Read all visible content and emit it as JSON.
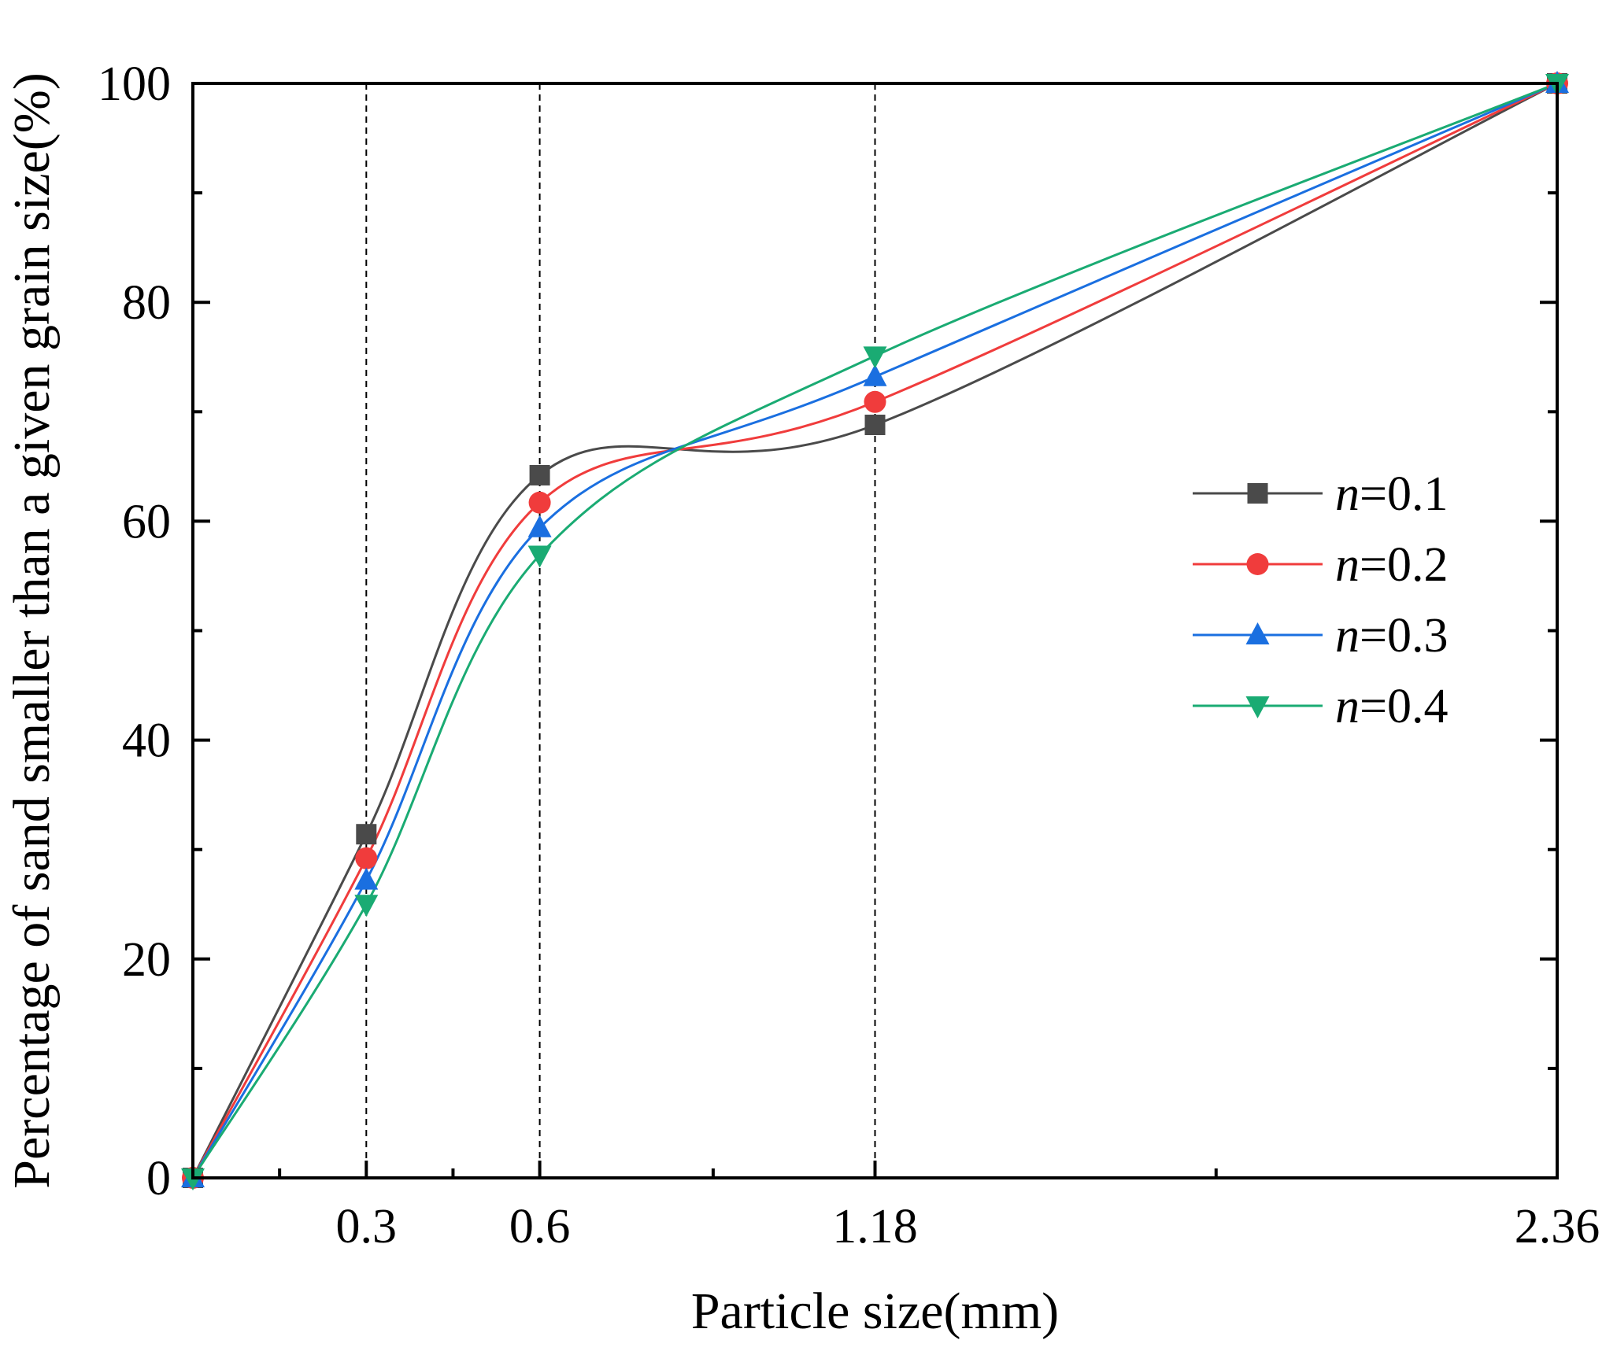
{
  "chart_data": {
    "type": "line",
    "title": "",
    "xlabel": "Particle size(mm)",
    "ylabel": "Percentage of sand smaller than a given grain size(%)",
    "xlim": [
      0,
      2.36
    ],
    "ylim": [
      0,
      100
    ],
    "x_ticks": [
      {
        "value": 0.3,
        "label": "0.3"
      },
      {
        "value": 0.6,
        "label": "0.6"
      },
      {
        "value": 1.18,
        "label": "1.18"
      },
      {
        "value": 2.36,
        "label": "2.36"
      }
    ],
    "y_ticks": [
      {
        "value": 0,
        "label": "0"
      },
      {
        "value": 20,
        "label": "20"
      },
      {
        "value": 40,
        "label": "40"
      },
      {
        "value": 60,
        "label": "60"
      },
      {
        "value": 80,
        "label": "80"
      },
      {
        "value": 100,
        "label": "100"
      }
    ],
    "reference_lines_x": [
      0.3,
      0.6,
      1.18
    ],
    "legend_position": "center-right",
    "x": [
      0,
      0.3,
      0.6,
      1.18,
      2.36
    ],
    "series": [
      {
        "name": "n=0.1",
        "name_italic": "n",
        "name_rest": "=0.1",
        "color": "#4a4a4a",
        "marker": "square",
        "values": [
          0,
          31.4,
          64.2,
          68.8,
          100
        ]
      },
      {
        "name": "n=0.2",
        "name_italic": "n",
        "name_rest": "=0.2",
        "color": "#f03c3c",
        "marker": "circle",
        "values": [
          0,
          29.2,
          61.7,
          70.9,
          100
        ]
      },
      {
        "name": "n=0.3",
        "name_italic": "n",
        "name_rest": "=0.3",
        "color": "#1a6fe0",
        "marker": "triangle-up",
        "values": [
          0,
          27.2,
          59.4,
          73.2,
          100
        ]
      },
      {
        "name": "n=0.4",
        "name_italic": "n",
        "name_rest": "=0.4",
        "color": "#1aab73",
        "marker": "triangle-down",
        "values": [
          0,
          25.0,
          56.9,
          75.1,
          100
        ]
      }
    ]
  }
}
